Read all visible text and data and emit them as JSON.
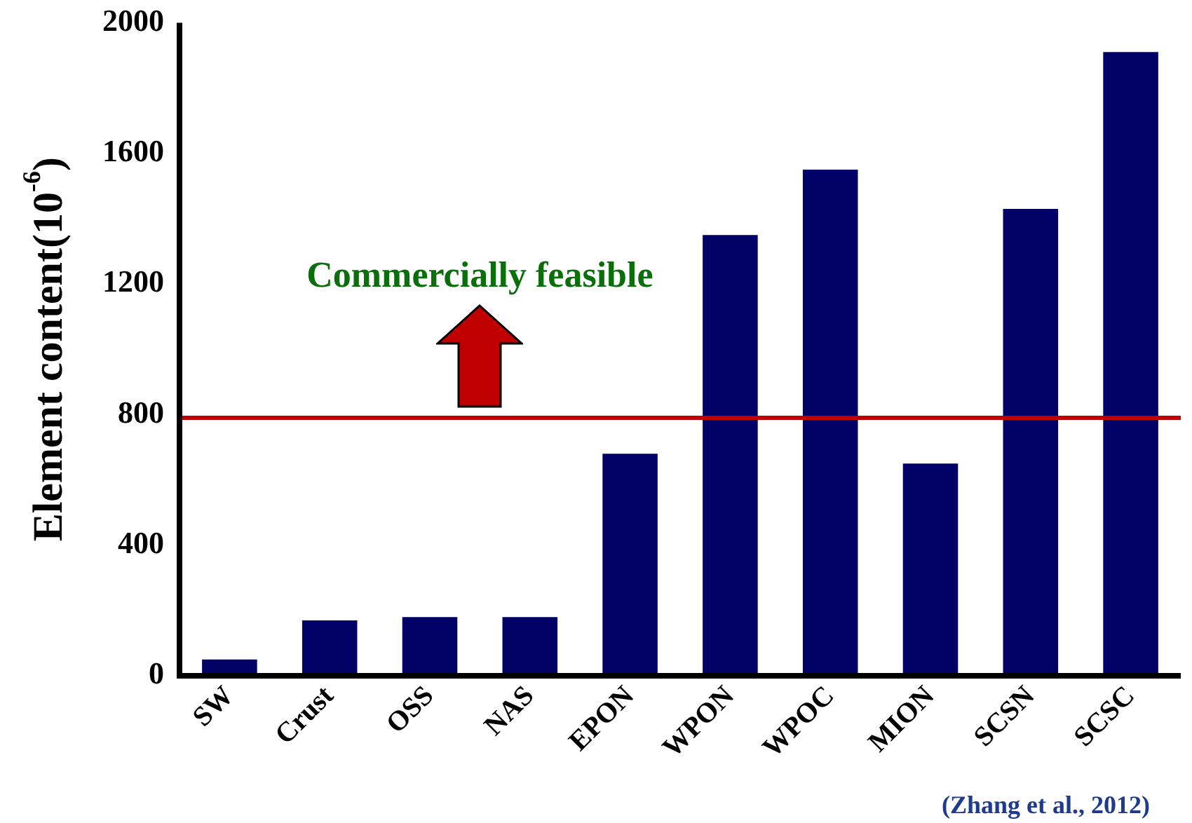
{
  "chart_data": {
    "type": "bar",
    "ylabel": "Element content(10$^{-6}$)",
    "categories": [
      "SW",
      "Crust",
      "OSS",
      "NAS",
      "EPON",
      "WPON",
      "WPOC",
      "MION",
      "SCSN",
      "SCSC"
    ],
    "values": [
      50,
      170,
      180,
      180,
      680,
      1350,
      1550,
      650,
      1430,
      1910
    ],
    "color": "#000066",
    "ylim": [
      0,
      2000
    ],
    "yticks": [
      0,
      400,
      800,
      1200,
      1600,
      2000
    ],
    "grid": false,
    "legend": false,
    "ref_lines": [
      {
        "axis": "y",
        "value": 790,
        "color": "#c00000"
      }
    ],
    "annotations": [
      "Commercially feasible",
      "(Zhang et al., 2012)"
    ]
  }
}
